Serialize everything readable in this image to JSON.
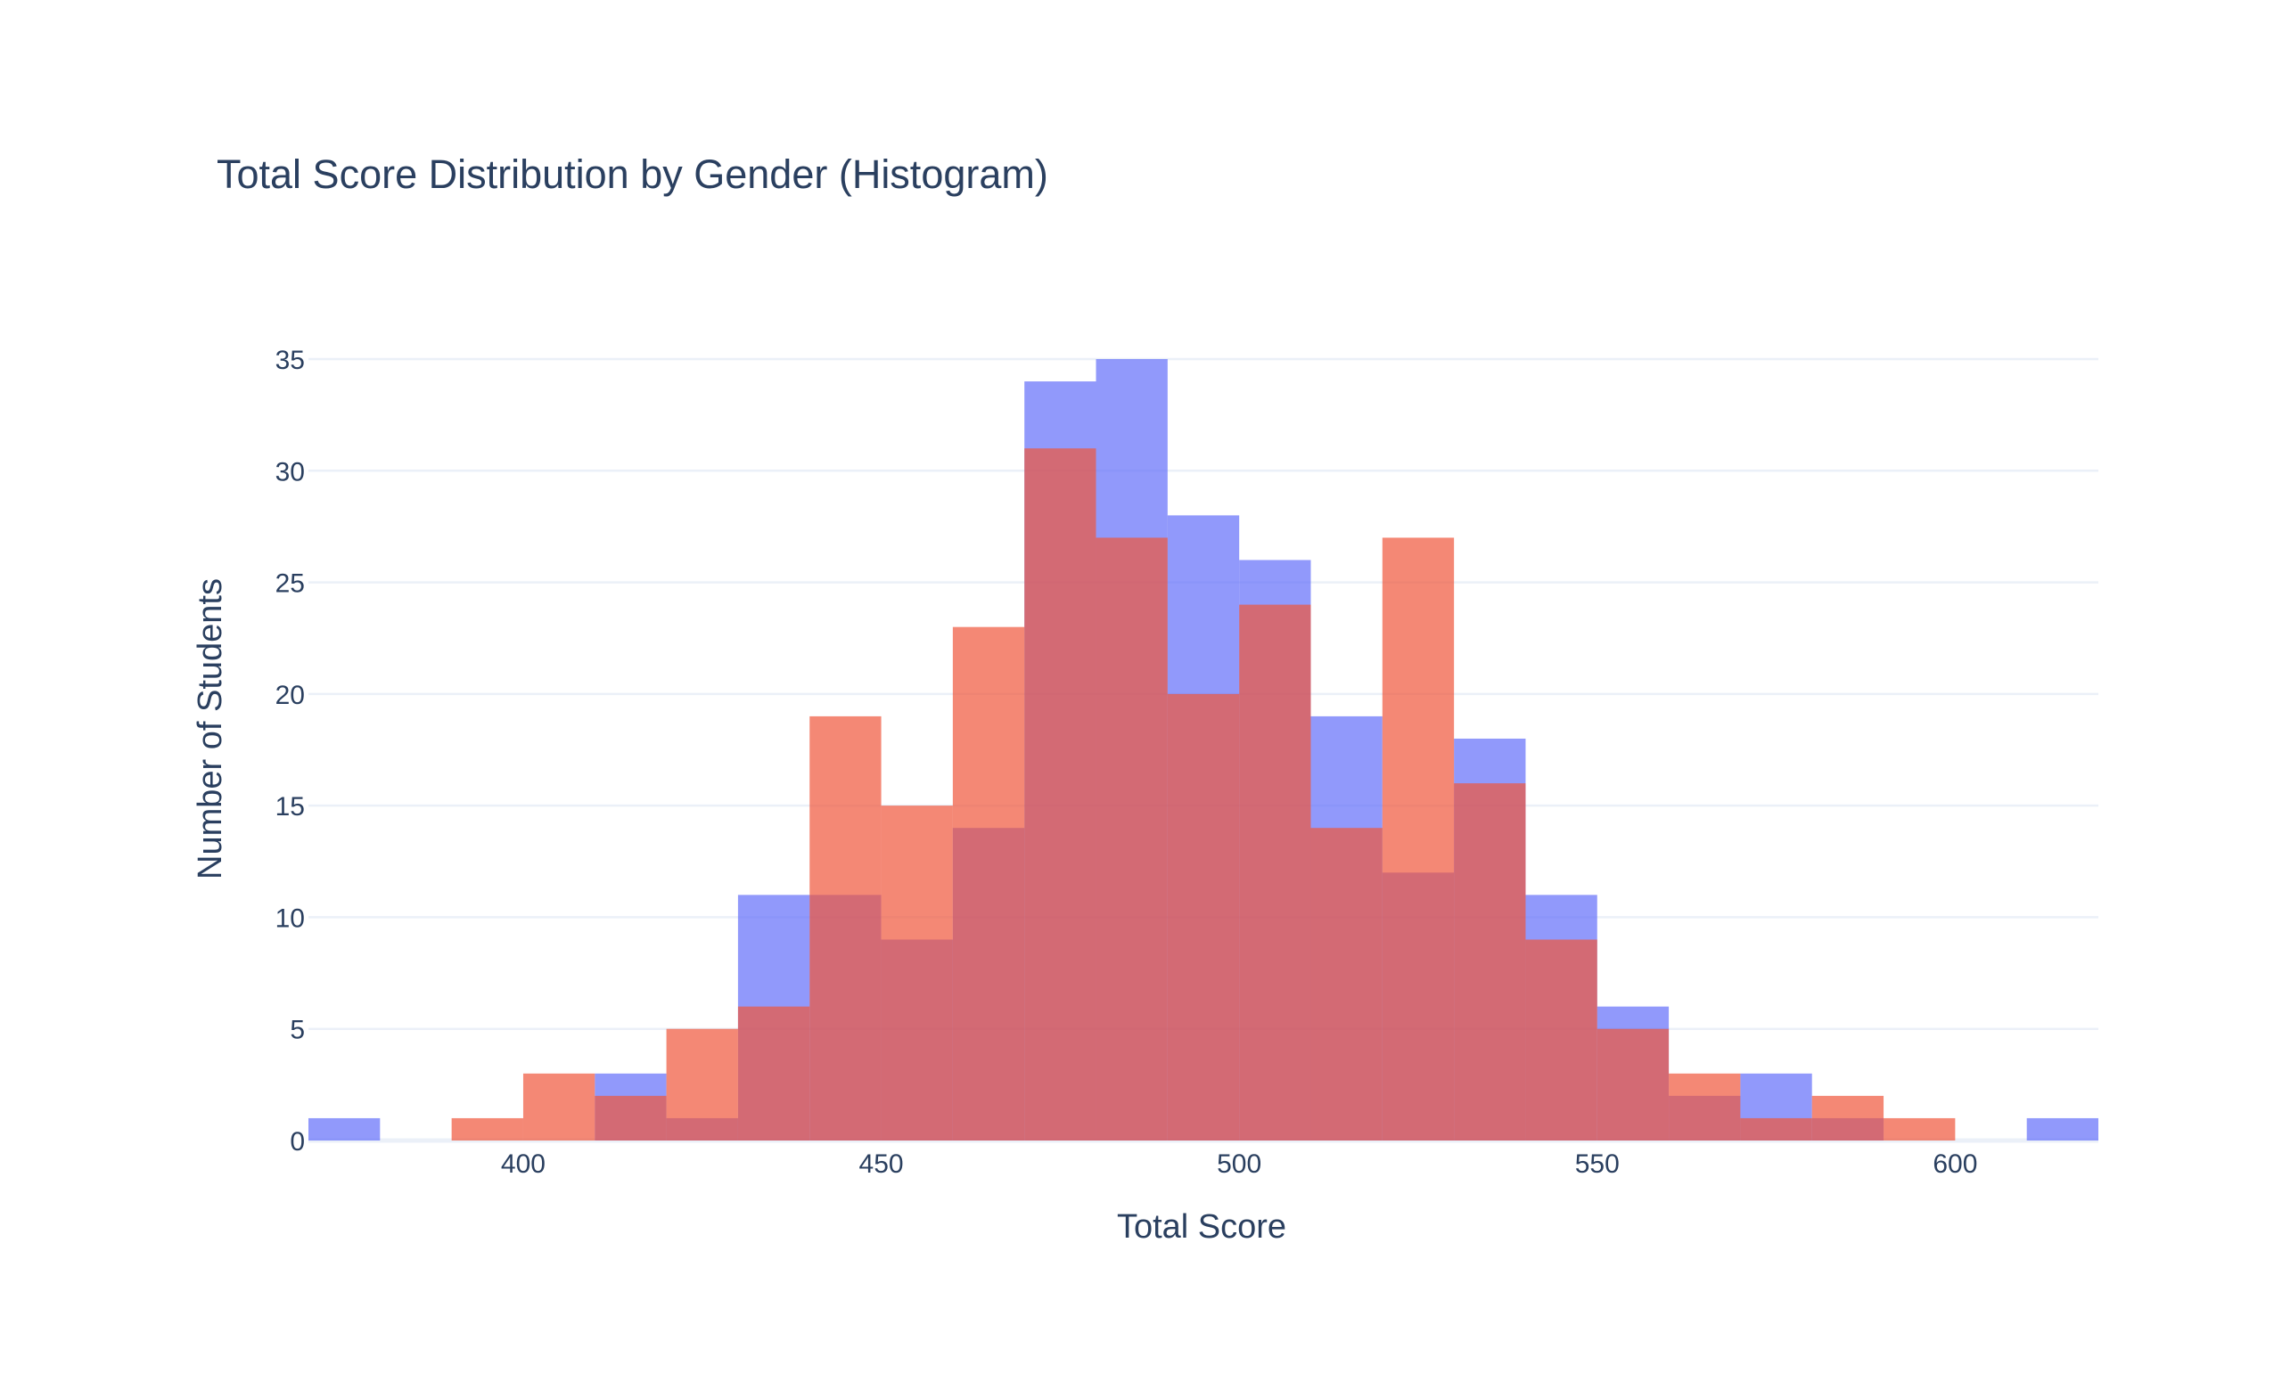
{
  "chart_data": {
    "type": "histogram",
    "barmode": "overlay",
    "title": "Total Score Distribution by Gender (Histogram)",
    "xlabel": "Total Score",
    "ylabel": "Number of Students",
    "xlim": [
      370,
      620
    ],
    "ylim": [
      0,
      35
    ],
    "bin_size": 10,
    "x_ticks": [
      400,
      450,
      500,
      550,
      600
    ],
    "x_tick_labels": [
      "400",
      "450",
      "500",
      "550",
      "600"
    ],
    "y_ticks": [
      0,
      5,
      10,
      15,
      20,
      25,
      30,
      35
    ],
    "y_tick_labels": [
      "0",
      "5",
      "10",
      "15",
      "20",
      "25",
      "30",
      "35"
    ],
    "grid": true,
    "legend": "none",
    "series": [
      {
        "name": "blue",
        "color": "#636efa",
        "opacity": 0.7,
        "bins": [
          {
            "x0": 370,
            "x1": 380,
            "count": 1
          },
          {
            "x0": 380,
            "x1": 390,
            "count": 0
          },
          {
            "x0": 390,
            "x1": 400,
            "count": 0
          },
          {
            "x0": 400,
            "x1": 410,
            "count": 0
          },
          {
            "x0": 410,
            "x1": 420,
            "count": 3
          },
          {
            "x0": 420,
            "x1": 430,
            "count": 1
          },
          {
            "x0": 430,
            "x1": 440,
            "count": 11
          },
          {
            "x0": 440,
            "x1": 450,
            "count": 11
          },
          {
            "x0": 450,
            "x1": 460,
            "count": 9
          },
          {
            "x0": 460,
            "x1": 470,
            "count": 14
          },
          {
            "x0": 470,
            "x1": 480,
            "count": 34
          },
          {
            "x0": 480,
            "x1": 490,
            "count": 35
          },
          {
            "x0": 490,
            "x1": 500,
            "count": 28
          },
          {
            "x0": 500,
            "x1": 510,
            "count": 26
          },
          {
            "x0": 510,
            "x1": 520,
            "count": 19
          },
          {
            "x0": 520,
            "x1": 530,
            "count": 12
          },
          {
            "x0": 530,
            "x1": 540,
            "count": 18
          },
          {
            "x0": 540,
            "x1": 550,
            "count": 11
          },
          {
            "x0": 550,
            "x1": 560,
            "count": 6
          },
          {
            "x0": 560,
            "x1": 570,
            "count": 2
          },
          {
            "x0": 570,
            "x1": 580,
            "count": 3
          },
          {
            "x0": 580,
            "x1": 590,
            "count": 1
          },
          {
            "x0": 590,
            "x1": 600,
            "count": 0
          },
          {
            "x0": 600,
            "x1": 610,
            "count": 0
          },
          {
            "x0": 610,
            "x1": 620,
            "count": 1
          }
        ]
      },
      {
        "name": "red",
        "color": "#ef553b",
        "opacity": 0.7,
        "bins": [
          {
            "x0": 370,
            "x1": 380,
            "count": 0
          },
          {
            "x0": 380,
            "x1": 390,
            "count": 0
          },
          {
            "x0": 390,
            "x1": 400,
            "count": 1
          },
          {
            "x0": 400,
            "x1": 410,
            "count": 3
          },
          {
            "x0": 410,
            "x1": 420,
            "count": 2
          },
          {
            "x0": 420,
            "x1": 430,
            "count": 5
          },
          {
            "x0": 430,
            "x1": 440,
            "count": 6
          },
          {
            "x0": 440,
            "x1": 450,
            "count": 19
          },
          {
            "x0": 450,
            "x1": 460,
            "count": 15
          },
          {
            "x0": 460,
            "x1": 470,
            "count": 23
          },
          {
            "x0": 470,
            "x1": 480,
            "count": 31
          },
          {
            "x0": 480,
            "x1": 490,
            "count": 27
          },
          {
            "x0": 490,
            "x1": 500,
            "count": 20
          },
          {
            "x0": 500,
            "x1": 510,
            "count": 24
          },
          {
            "x0": 510,
            "x1": 520,
            "count": 14
          },
          {
            "x0": 520,
            "x1": 530,
            "count": 27
          },
          {
            "x0": 530,
            "x1": 540,
            "count": 16
          },
          {
            "x0": 540,
            "x1": 550,
            "count": 9
          },
          {
            "x0": 550,
            "x1": 560,
            "count": 5
          },
          {
            "x0": 560,
            "x1": 570,
            "count": 3
          },
          {
            "x0": 570,
            "x1": 580,
            "count": 1
          },
          {
            "x0": 580,
            "x1": 590,
            "count": 2
          },
          {
            "x0": 590,
            "x1": 600,
            "count": 1
          },
          {
            "x0": 600,
            "x1": 610,
            "count": 0
          },
          {
            "x0": 610,
            "x1": 620,
            "count": 0
          }
        ]
      }
    ]
  }
}
